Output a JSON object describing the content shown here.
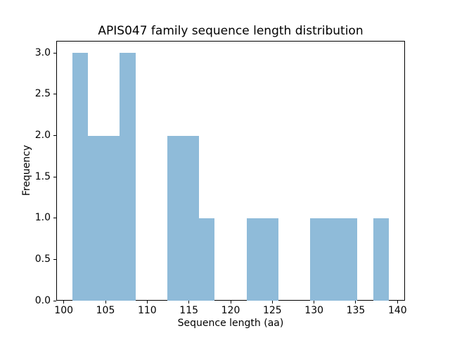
{
  "chart_data": {
    "type": "bar",
    "subtype": "histogram",
    "title": "APIS047 family sequence length distribution",
    "xlabel": "Sequence length (aa)",
    "ylabel": "Frequency",
    "bin_edges": [
      101.0,
      102.9,
      104.8,
      106.7,
      108.6,
      110.5,
      112.4,
      114.3,
      116.2,
      118.1,
      120.0,
      121.9,
      123.8,
      125.7,
      127.6,
      129.5,
      131.4,
      133.3,
      135.2,
      137.1,
      139.0
    ],
    "counts": [
      3,
      2,
      2,
      3,
      0,
      0,
      2,
      2,
      1,
      0,
      0,
      1,
      1,
      0,
      0,
      1,
      1,
      1,
      0,
      1
    ],
    "x_ticks": [
      "100",
      "105",
      "110",
      "115",
      "120",
      "125",
      "130",
      "135",
      "140"
    ],
    "y_ticks": [
      "0.0",
      "0.5",
      "1.0",
      "1.5",
      "2.0",
      "2.5",
      "3.0"
    ],
    "xlim": [
      99.1,
      140.9
    ],
    "ylim": [
      0,
      3.15
    ],
    "grid": false,
    "legend": null,
    "bar_color": "#8FBBD9",
    "axis_color": "#000000",
    "text_color": "#000000",
    "background_color": "#ffffff"
  }
}
